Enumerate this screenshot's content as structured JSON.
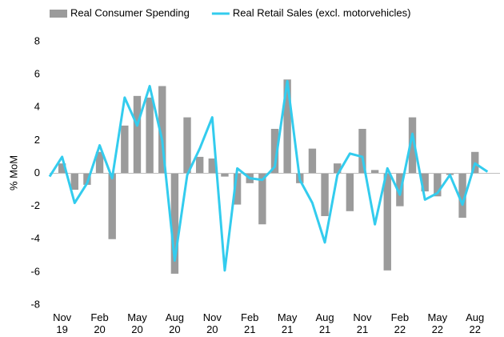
{
  "chart_data": {
    "type": "bar-line",
    "y_label": "% MoM",
    "categories": [
      null,
      "Nov 19",
      null,
      null,
      "Feb 20",
      null,
      null,
      "May 20",
      null,
      null,
      "Aug 20",
      null,
      null,
      "Nov 20",
      null,
      null,
      "Feb 21",
      null,
      null,
      "May 21",
      null,
      null,
      "Aug 21",
      null,
      null,
      "Nov 21",
      null,
      null,
      "Feb 22",
      null,
      null,
      "May 22",
      null,
      null,
      "Aug 22",
      null
    ],
    "series": [
      {
        "name": "Real Consumer Spending",
        "type": "bar",
        "color": "#9b9b9b",
        "values": [
          null,
          0.6,
          -1.0,
          -0.7,
          1.3,
          -4.0,
          2.9,
          4.7,
          4.6,
          5.3,
          -6.1,
          3.4,
          1.0,
          0.9,
          -0.2,
          -1.9,
          -0.6,
          -3.1,
          2.7,
          5.7,
          -0.6,
          1.5,
          -2.6,
          0.6,
          -2.3,
          2.7,
          0.2,
          -5.9,
          -2.0,
          3.4,
          -1.1,
          -1.4,
          -0.1,
          -2.7,
          1.3,
          null
        ]
      },
      {
        "name": "Real Retail Sales (excl. motorvehicles)",
        "type": "line",
        "color": "#33ccee",
        "values": [
          -0.2,
          1.0,
          -1.8,
          -0.6,
          1.7,
          -0.3,
          4.6,
          2.9,
          5.3,
          2.0,
          -5.3,
          -0.1,
          1.5,
          3.4,
          -5.9,
          0.3,
          -0.3,
          -0.4,
          0.4,
          5.6,
          -0.4,
          -1.8,
          -4.2,
          -0.1,
          1.2,
          1.0,
          -3.1,
          0.3,
          -1.3,
          2.4,
          -1.6,
          -1.2,
          -0.1,
          -1.9,
          0.6,
          0.1
        ]
      }
    ],
    "ylim": [
      -8,
      8
    ],
    "yticks": [
      -8,
      -6,
      -4,
      -2,
      0,
      2,
      4,
      6,
      8
    ],
    "grid": false
  }
}
